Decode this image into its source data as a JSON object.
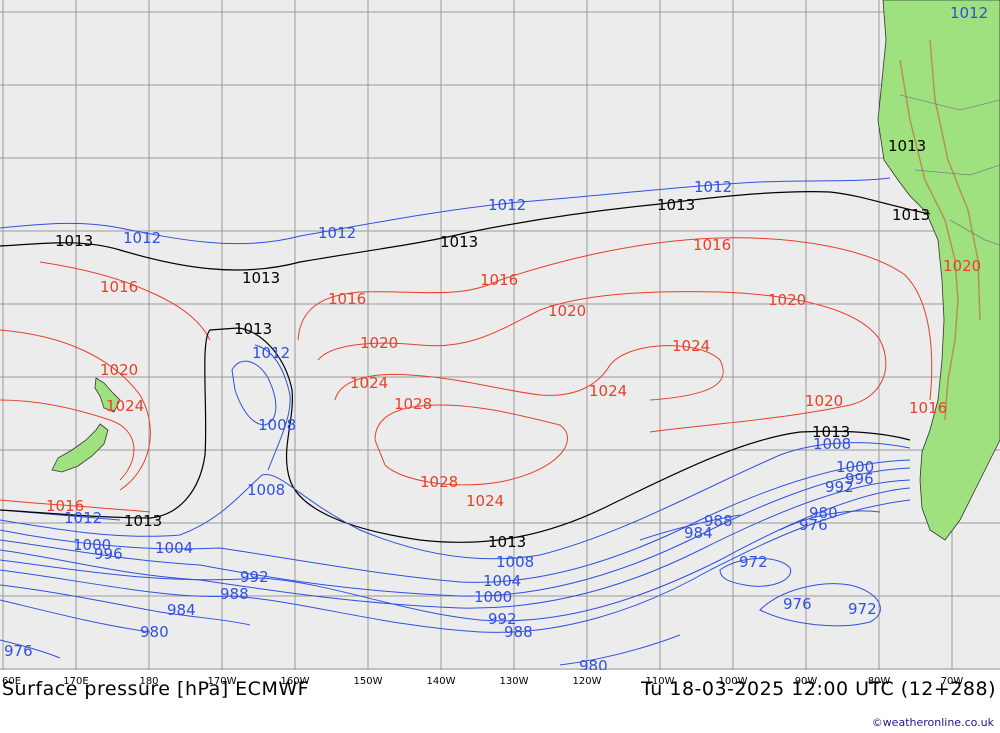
{
  "title": "Surface pressure [hPa] ECMWF",
  "valid_time": "Tu 18-03-2025 12:00 UTC (12+288)",
  "credit": "©weatheronline.co.uk",
  "colors": {
    "ocean": "#ececec",
    "land": "#9fe07f",
    "grid": "#9a9a9a",
    "isobar_high": "#e8402a",
    "isobar_low": "#3050e0",
    "isobar_1013": "#000000"
  },
  "lon_labels": [
    "60E",
    "170E",
    "180",
    "170W",
    "160W",
    "150W",
    "140W",
    "130W",
    "120W",
    "110W",
    "100W",
    "90W",
    "80W",
    "70W"
  ],
  "isobar_labels": {
    "black_1013": [
      "1013",
      "1013",
      "1013",
      "1013",
      "1013",
      "1013",
      "1013",
      "1013",
      "1013",
      "1013"
    ],
    "blue_1012": [
      "1012",
      "1012",
      "1012",
      "1012",
      "1012",
      "1012",
      "1012"
    ],
    "red_1016": [
      "1016",
      "1016",
      "1016",
      "1016",
      "1016",
      "1016"
    ],
    "red_1020": [
      "1020",
      "1020",
      "1020",
      "1020",
      "1020",
      "1020"
    ],
    "red_1024": [
      "1024",
      "1024",
      "1024",
      "1024",
      "1024"
    ],
    "red_1028": [
      "1028",
      "1028"
    ],
    "blue_1008": [
      "1008",
      "1008",
      "1008",
      "1008"
    ],
    "blue_1004": [
      "1004",
      "1004"
    ],
    "blue_1000": [
      "1000",
      "1000",
      "1000"
    ],
    "blue_996": [
      "996",
      "996"
    ],
    "blue_992": [
      "992",
      "992",
      "992"
    ],
    "blue_988": [
      "988",
      "988",
      "988"
    ],
    "blue_984": [
      "984",
      "984"
    ],
    "blue_980": [
      "980",
      "980",
      "980"
    ],
    "blue_976": [
      "976",
      "976",
      "976"
    ],
    "blue_972": [
      "972",
      "972"
    ]
  }
}
